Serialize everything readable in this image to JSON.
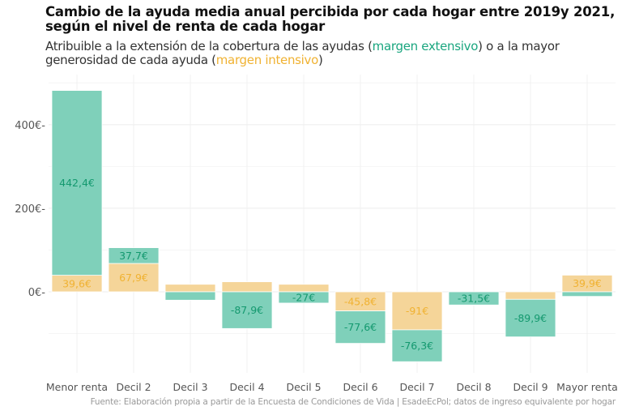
{
  "chart_data": {
    "type": "bar",
    "stacked": true,
    "title": "Cambio de la ayuda media anual percibida por cada hogar entre 2019y 2021, según el nivel de renta de cada hogar",
    "subtitle": {
      "before": "Atribuible a la extensión de la cobertura de las ayudas (",
      "ext": "margen extensivo",
      "middle": ") o a la mayor generosidad de cada ayuda (",
      "int": "margen intensivo",
      "after": ")"
    },
    "caption": "Fuente: Elaboración propia a partir de la Encuesta de Condiciones de Vida | EsadeEcPol; datos de ingreso equivalente por hogar",
    "categories": [
      "Menor renta",
      "Decil 2",
      "Decil 3",
      "Decil 4",
      "Decil 5",
      "Decil 6",
      "Decil 7",
      "Decil 8",
      "Decil 9",
      "Mayor renta"
    ],
    "series": [
      {
        "name": "margen intensivo",
        "color": "#f5d599",
        "label_color": "#f0b232",
        "values": [
          39.6,
          67.9,
          18,
          24,
          18,
          -45.8,
          -91,
          0,
          -18,
          39.9
        ],
        "labels": [
          "39,6€",
          "67,9€",
          "",
          "",
          "",
          "-45,8€",
          "-91€",
          "",
          "",
          "39,9€"
        ]
      },
      {
        "name": "margen extensivo",
        "color": "#7fd0ba",
        "label_color": "#14996f",
        "values": [
          442.4,
          37.7,
          -20,
          -87.9,
          -27,
          -77.6,
          -76.3,
          -31.5,
          -89.9,
          -11
        ],
        "labels": [
          "442,4€",
          "37,7€",
          "",
          "-87,9€",
          "-27€",
          "-77,6€",
          "-76,3€",
          "-31,5€",
          "-89,9€",
          ""
        ]
      }
    ],
    "yticks": [
      0,
      200,
      400
    ],
    "ytick_labels": [
      "0€-",
      "200€-",
      "400€-"
    ],
    "ylim": [
      -194,
      520
    ],
    "grid": true
  }
}
